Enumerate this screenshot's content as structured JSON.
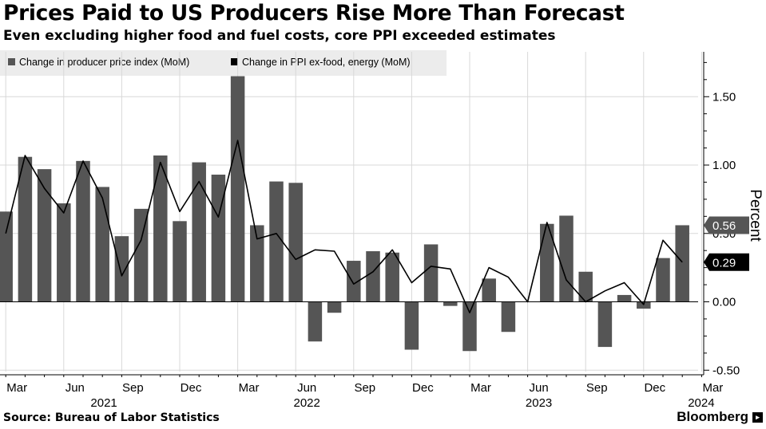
{
  "header": {
    "title": "Prices Paid to US Producers Rise More Than Forecast",
    "subtitle": "Even excluding higher food and fuel costs, core PPI exceeded estimates"
  },
  "footer": {
    "source": "Source: Bureau of Labor Statistics",
    "brand": "Bloomberg",
    "brand_icon": "terminal-icon"
  },
  "colors": {
    "bar": "#555555",
    "line": "#000000",
    "legend_bg": "#ececec",
    "grid": "#d8d8d8",
    "callout_bar": "#555555",
    "callout_line": "#000000"
  },
  "chart_data": {
    "type": "bar",
    "x": [
      "Mar 2021",
      "Apr 2021",
      "May 2021",
      "Jun 2021",
      "Jul 2021",
      "Aug 2021",
      "Sep 2021",
      "Oct 2021",
      "Nov 2021",
      "Dec 2021",
      "Jan 2022",
      "Feb 2022",
      "Mar 2022",
      "Apr 2022",
      "May 2022",
      "Jun 2022",
      "Jul 2022",
      "Aug 2022",
      "Sep 2022",
      "Oct 2022",
      "Nov 2022",
      "Dec 2022",
      "Jan 2023",
      "Feb 2023",
      "Mar 2023",
      "Apr 2023",
      "May 2023",
      "Jun 2023",
      "Jul 2023",
      "Aug 2023",
      "Sep 2023",
      "Oct 2023",
      "Nov 2023",
      "Dec 2023",
      "Jan 2024",
      "Feb 2024",
      "Mar 2024"
    ],
    "series": [
      {
        "name": "Change in producer price index (MoM)",
        "kind": "bar",
        "values": [
          0.66,
          1.06,
          0.97,
          0.72,
          1.03,
          0.84,
          0.48,
          0.68,
          1.07,
          0.59,
          1.02,
          0.93,
          1.65,
          0.56,
          0.88,
          0.87,
          -0.29,
          -0.08,
          0.3,
          0.37,
          0.36,
          -0.35,
          0.42,
          -0.03,
          -0.36,
          0.17,
          -0.22,
          0.0,
          0.57,
          0.63,
          0.22,
          -0.33,
          0.05,
          -0.05,
          0.32,
          0.56,
          0.0
        ]
      },
      {
        "name": "Change in PPI ex-food, energy (MoM)",
        "kind": "line",
        "values": [
          0.5,
          1.07,
          0.83,
          0.65,
          1.03,
          0.76,
          0.19,
          0.45,
          1.02,
          0.66,
          0.88,
          0.62,
          1.18,
          0.46,
          0.5,
          0.31,
          0.38,
          0.37,
          0.13,
          0.22,
          0.38,
          0.14,
          0.26,
          0.24,
          -0.08,
          0.25,
          0.18,
          0.0,
          0.58,
          0.16,
          0.0,
          0.08,
          0.14,
          -0.02,
          0.45,
          0.29,
          null
        ]
      }
    ],
    "y_ticks": [
      "1.50",
      "1.00",
      "0.50",
      "0.00",
      "-0.50"
    ],
    "ylim": [
      -0.5,
      1.75
    ],
    "ylabel": "Percent",
    "x_ticks": [
      {
        "label": "Mar",
        "index": 0
      },
      {
        "label": "Jun",
        "index": 3
      },
      {
        "label": "Sep",
        "index": 6
      },
      {
        "label": "Dec",
        "index": 9
      },
      {
        "label": "Mar",
        "index": 12
      },
      {
        "label": "Jun",
        "index": 15
      },
      {
        "label": "Sep",
        "index": 18
      },
      {
        "label": "Dec",
        "index": 21
      },
      {
        "label": "Mar",
        "index": 24
      },
      {
        "label": "Jun",
        "index": 27
      },
      {
        "label": "Sep",
        "index": 30
      },
      {
        "label": "Dec",
        "index": 33
      },
      {
        "label": "Mar",
        "index": 36
      }
    ],
    "year_labels": [
      {
        "label": "2021",
        "index": 4.5
      },
      {
        "label": "2022",
        "index": 15
      },
      {
        "label": "2023",
        "index": 27
      },
      {
        "label": "2024",
        "index": 35.4
      }
    ],
    "callouts": [
      {
        "label": "0.56",
        "value": 0.56,
        "series": 0
      },
      {
        "label": "0.29",
        "value": 0.29,
        "series": 1
      }
    ],
    "grid": true,
    "legend_position": "top-left"
  }
}
